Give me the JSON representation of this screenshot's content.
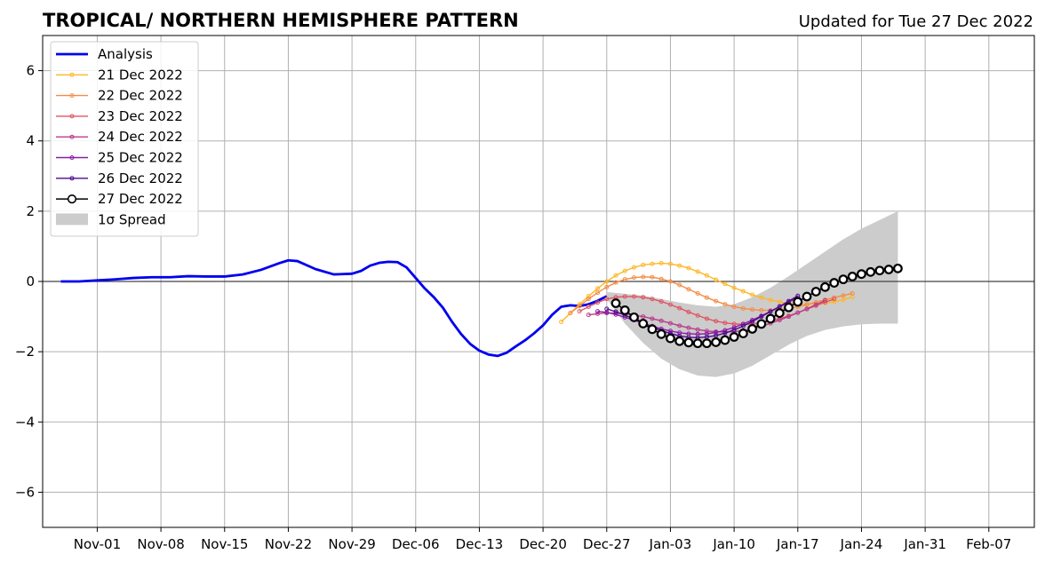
{
  "chart_data": {
    "type": "line",
    "title": "TROPICAL/ NORTHERN HEMISPHERE PATTERN",
    "subtitle": "Updated for Tue 27 Dec 2022",
    "xlabel": "",
    "ylabel": "",
    "ylim": [
      -7,
      7
    ],
    "xlim": [
      "2022-10-26",
      "2023-02-12"
    ],
    "grid": true,
    "legend_position": "top-left",
    "x_ticks": [
      "Nov-01",
      "Nov-08",
      "Nov-15",
      "Nov-22",
      "Nov-29",
      "Dec-06",
      "Dec-13",
      "Dec-20",
      "Dec-27",
      "Jan-03",
      "Jan-10",
      "Jan-17",
      "Jan-24",
      "Jan-31",
      "Feb-07"
    ],
    "x_tick_dates": [
      "2022-11-01",
      "2022-11-08",
      "2022-11-15",
      "2022-11-22",
      "2022-11-29",
      "2022-12-06",
      "2022-12-13",
      "2022-12-20",
      "2022-12-27",
      "2023-01-03",
      "2023-01-10",
      "2023-01-17",
      "2023-01-24",
      "2023-01-31",
      "2023-02-07"
    ],
    "y_ticks": [
      6,
      4,
      2,
      0,
      -2,
      -4,
      -6
    ],
    "y_tick_labels": [
      "6",
      "4",
      "2",
      "0",
      "−2",
      "−4",
      "−6"
    ],
    "analysis": {
      "name": "Analysis",
      "color": "#0000ee",
      "points": [
        [
          "2022-10-28",
          0.0
        ],
        [
          "2022-10-30",
          0.0
        ],
        [
          "2022-11-01",
          0.03
        ],
        [
          "2022-11-03",
          0.06
        ],
        [
          "2022-11-05",
          0.1
        ],
        [
          "2022-11-07",
          0.12
        ],
        [
          "2022-11-09",
          0.12
        ],
        [
          "2022-11-11",
          0.15
        ],
        [
          "2022-11-13",
          0.14
        ],
        [
          "2022-11-15",
          0.14
        ],
        [
          "2022-11-17",
          0.2
        ],
        [
          "2022-11-19",
          0.33
        ],
        [
          "2022-11-21",
          0.52
        ],
        [
          "2022-11-22",
          0.6
        ],
        [
          "2022-11-23",
          0.58
        ],
        [
          "2022-11-25",
          0.35
        ],
        [
          "2022-11-27",
          0.2
        ],
        [
          "2022-11-29",
          0.22
        ],
        [
          "2022-11-30",
          0.3
        ],
        [
          "2022-12-01",
          0.45
        ],
        [
          "2022-12-02",
          0.53
        ],
        [
          "2022-12-03",
          0.56
        ],
        [
          "2022-12-04",
          0.55
        ],
        [
          "2022-12-05",
          0.4
        ],
        [
          "2022-12-06",
          0.1
        ],
        [
          "2022-12-07",
          -0.2
        ],
        [
          "2022-12-08",
          -0.45
        ],
        [
          "2022-12-09",
          -0.75
        ],
        [
          "2022-12-10",
          -1.15
        ],
        [
          "2022-12-11",
          -1.5
        ],
        [
          "2022-12-12",
          -1.78
        ],
        [
          "2022-12-13",
          -1.97
        ],
        [
          "2022-12-14",
          -2.08
        ],
        [
          "2022-12-15",
          -2.12
        ],
        [
          "2022-12-16",
          -2.03
        ],
        [
          "2022-12-17",
          -1.85
        ],
        [
          "2022-12-18",
          -1.68
        ],
        [
          "2022-12-19",
          -1.48
        ],
        [
          "2022-12-20",
          -1.25
        ],
        [
          "2022-12-21",
          -0.95
        ],
        [
          "2022-12-22",
          -0.72
        ],
        [
          "2022-12-23",
          -0.68
        ],
        [
          "2022-12-24",
          -0.7
        ],
        [
          "2022-12-25",
          -0.65
        ],
        [
          "2022-12-26",
          -0.55
        ],
        [
          "2022-12-27",
          -0.42
        ]
      ]
    },
    "forecasts": [
      {
        "name": "21 Dec 2022",
        "color": "#fdb827",
        "start": "2022-12-22",
        "values": [
          -1.15,
          -0.9,
          -0.65,
          -0.42,
          -0.2,
          0.0,
          0.17,
          0.3,
          0.4,
          0.47,
          0.5,
          0.52,
          0.5,
          0.45,
          0.38,
          0.28,
          0.17,
          0.05,
          -0.07,
          -0.18,
          -0.28,
          -0.38,
          -0.46,
          -0.53,
          -0.58,
          -0.62,
          -0.64,
          -0.65,
          -0.64,
          -0.62,
          -0.58,
          -0.52,
          -0.44
        ]
      },
      {
        "name": "22 Dec 2022",
        "color": "#f58c44",
        "start": "2022-12-23",
        "values": [
          -0.9,
          -0.7,
          -0.5,
          -0.32,
          -0.16,
          -0.03,
          0.06,
          0.11,
          0.13,
          0.12,
          0.07,
          0.0,
          -0.1,
          -0.22,
          -0.34,
          -0.46,
          -0.56,
          -0.65,
          -0.72,
          -0.77,
          -0.8,
          -0.82,
          -0.82,
          -0.8,
          -0.77,
          -0.72,
          -0.66,
          -0.59,
          -0.52,
          -0.46,
          -0.4,
          -0.34
        ]
      },
      {
        "name": "23 Dec 2022",
        "color": "#e05563",
        "start": "2022-12-24",
        "values": [
          -0.85,
          -0.72,
          -0.6,
          -0.5,
          -0.45,
          -0.43,
          -0.43,
          -0.45,
          -0.5,
          -0.57,
          -0.66,
          -0.76,
          -0.87,
          -0.97,
          -1.06,
          -1.13,
          -1.18,
          -1.21,
          -1.22,
          -1.21,
          -1.18,
          -1.13,
          -1.06,
          -0.98,
          -0.89,
          -0.79,
          -0.69,
          -0.59,
          -0.5
        ]
      },
      {
        "name": "24 Dec 2022",
        "color": "#b83c8a",
        "start": "2022-12-25",
        "values": [
          -0.95,
          -0.92,
          -0.9,
          -0.9,
          -0.92,
          -0.96,
          -1.0,
          -1.06,
          -1.12,
          -1.19,
          -1.26,
          -1.32,
          -1.37,
          -1.41,
          -1.43,
          -1.44,
          -1.43,
          -1.4,
          -1.35,
          -1.28,
          -1.19,
          -1.1,
          -1.0,
          -0.89,
          -0.78,
          -0.66,
          -0.54
        ]
      },
      {
        "name": "25 Dec 2022",
        "color": "#8c1aa3",
        "start": "2022-12-26",
        "values": [
          -0.85,
          -0.88,
          -0.94,
          -1.02,
          -1.1,
          -1.19,
          -1.27,
          -1.35,
          -1.41,
          -1.46,
          -1.49,
          -1.5,
          -1.49,
          -1.45,
          -1.39,
          -1.31,
          -1.21,
          -1.1,
          -0.98,
          -0.85,
          -0.72,
          -0.59,
          -0.46
        ]
      },
      {
        "name": "26 Dec 2022",
        "color": "#4b0a8c",
        "start": "2022-12-27",
        "values": [
          -0.78,
          -0.86,
          -0.96,
          -1.07,
          -1.19,
          -1.3,
          -1.4,
          -1.48,
          -1.55,
          -1.59,
          -1.6,
          -1.58,
          -1.54,
          -1.47,
          -1.38,
          -1.27,
          -1.14,
          -1.0,
          -0.86,
          -0.71,
          -0.56,
          -0.41
        ]
      }
    ],
    "latest": {
      "name": "27 Dec 2022",
      "color": "#000000",
      "start": "2022-12-28",
      "values": [
        -0.62,
        -0.82,
        -1.02,
        -1.2,
        -1.36,
        -1.5,
        -1.62,
        -1.7,
        -1.74,
        -1.76,
        -1.76,
        -1.73,
        -1.67,
        -1.58,
        -1.48,
        -1.35,
        -1.21,
        -1.06,
        -0.9,
        -0.74,
        -0.58,
        -0.43,
        -0.29,
        -0.16,
        -0.04,
        0.06,
        0.14,
        0.21,
        0.27,
        0.31,
        0.34,
        0.37
      ]
    },
    "spread": {
      "name": "1σ Spread",
      "color": "#cccccc",
      "x": [
        "2022-12-27",
        "2022-12-29",
        "2022-12-31",
        "2023-01-02",
        "2023-01-04",
        "2023-01-06",
        "2023-01-08",
        "2023-01-10",
        "2023-01-12",
        "2023-01-14",
        "2023-01-16",
        "2023-01-18",
        "2023-01-20",
        "2023-01-22",
        "2023-01-24",
        "2023-01-26",
        "2023-01-28"
      ],
      "upper": [
        -0.3,
        -0.35,
        -0.4,
        -0.5,
        -0.6,
        -0.68,
        -0.72,
        -0.65,
        -0.45,
        -0.18,
        0.15,
        0.5,
        0.85,
        1.2,
        1.5,
        1.75,
        2.0
      ],
      "lower": [
        -0.5,
        -1.2,
        -1.75,
        -2.2,
        -2.5,
        -2.68,
        -2.72,
        -2.62,
        -2.4,
        -2.1,
        -1.8,
        -1.55,
        -1.38,
        -1.28,
        -1.22,
        -1.2,
        -1.2
      ]
    }
  }
}
